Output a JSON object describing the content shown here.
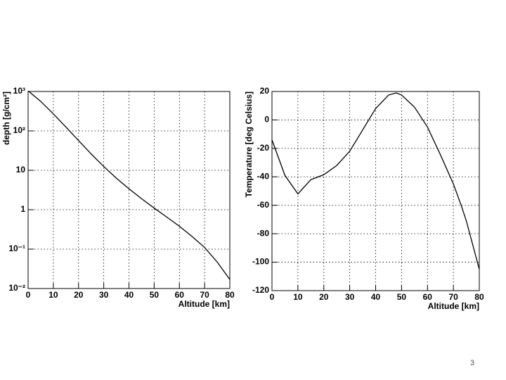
{
  "chart_data": [
    {
      "type": "line",
      "xlabel": "Altitude [km]",
      "ylabel": "depth [g/cm²]",
      "x": [
        0,
        5,
        10,
        15,
        20,
        25,
        30,
        35,
        40,
        45,
        50,
        55,
        60,
        65,
        70,
        75,
        80
      ],
      "values": [
        1036,
        560,
        270,
        125,
        57,
        26,
        12.5,
        6.3,
        3.4,
        1.9,
        1.1,
        0.65,
        0.38,
        0.21,
        0.11,
        0.047,
        0.017
      ],
      "color": "#000000",
      "log_y": true,
      "grid": true,
      "xlim": [
        0,
        80
      ],
      "xticks": [
        0,
        10,
        20,
        30,
        40,
        50,
        60,
        70,
        80
      ],
      "ylim": [
        0.01,
        1000
      ],
      "yticks": [
        {
          "value": 0.01,
          "label": "10⁻²"
        },
        {
          "value": 0.1,
          "label": "10⁻¹"
        },
        1,
        10,
        {
          "value": 100,
          "label": "10²"
        },
        {
          "value": 1000,
          "label": "10³"
        }
      ]
    },
    {
      "type": "line",
      "xlabel": "Altitude [km]",
      "ylabel": "Temperature [deg Celsius]",
      "x": [
        0,
        5,
        10,
        15,
        20,
        25,
        30,
        35,
        40,
        45,
        48,
        50,
        55,
        60,
        65,
        70,
        73,
        75,
        80
      ],
      "values": [
        -14,
        -39,
        -52,
        -42,
        -38.5,
        -32,
        -22,
        -7,
        8,
        17.5,
        19,
        17.5,
        9,
        -5,
        -24.5,
        -45,
        -60,
        -71,
        -105
      ],
      "color": "#000000",
      "log_y": false,
      "grid": true,
      "xlim": [
        0,
        80
      ],
      "xticks": [
        0,
        10,
        20,
        30,
        40,
        50,
        60,
        70,
        80
      ],
      "ylim": [
        -120,
        20
      ],
      "yticks": [
        -120,
        -100,
        -80,
        -60,
        -40,
        -20,
        0,
        20
      ]
    }
  ],
  "page_number": "3"
}
